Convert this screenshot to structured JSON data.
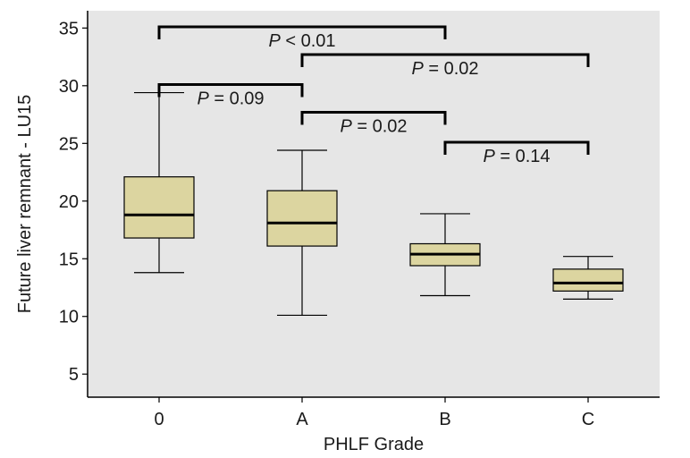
{
  "chart_data": {
    "type": "boxplot",
    "title": "",
    "xlabel": "PHLF Grade",
    "ylabel": "Future liver remnant - LU15",
    "categories": [
      "0",
      "A",
      "B",
      "C"
    ],
    "ylim": [
      3,
      36.5
    ],
    "yticks": [
      5,
      10,
      15,
      20,
      25,
      30,
      35
    ],
    "grid": false,
    "colors": {
      "box_fill": "#dcd5a0",
      "plot_bg": "#e6e6e6",
      "line": "#000000"
    },
    "boxes": [
      {
        "category": "0",
        "min": 13.8,
        "q1": 16.8,
        "median": 18.8,
        "q3": 22.1,
        "max": 29.4
      },
      {
        "category": "A",
        "min": 10.1,
        "q1": 16.1,
        "median": 18.1,
        "q3": 20.9,
        "max": 24.4
      },
      {
        "category": "B",
        "min": 11.8,
        "q1": 14.4,
        "median": 15.4,
        "q3": 16.3,
        "max": 18.9
      },
      {
        "category": "C",
        "min": 11.5,
        "q1": 12.2,
        "median": 12.9,
        "q3": 14.1,
        "max": 15.2
      }
    ],
    "annotations": [
      {
        "from": "0",
        "to": "B",
        "y": 35.1,
        "p_label": "P",
        "operator": "<",
        "value": "0.01"
      },
      {
        "from": "A",
        "to": "C",
        "y": 32.7,
        "p_label": "P",
        "operator": "=",
        "value": "0.02"
      },
      {
        "from": "0",
        "to": "A",
        "y": 30.1,
        "p_label": "P",
        "operator": "=",
        "value": "0.09"
      },
      {
        "from": "A",
        "to": "B",
        "y": 27.7,
        "p_label": "P",
        "operator": "=",
        "value": "0.02"
      },
      {
        "from": "B",
        "to": "C",
        "y": 25.1,
        "p_label": "P",
        "operator": "=",
        "value": "0.14"
      }
    ]
  }
}
